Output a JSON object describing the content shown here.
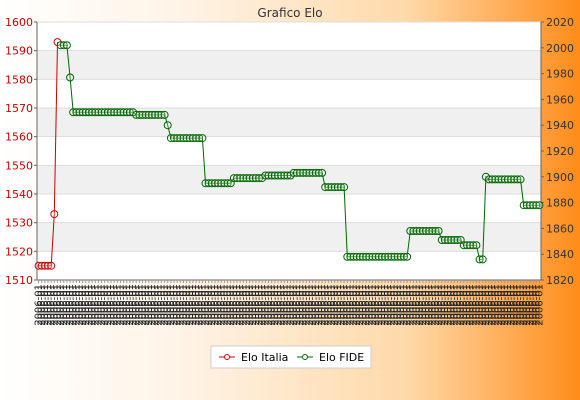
{
  "chart_data": {
    "type": "line",
    "title": "Grafico Elo",
    "y_left": {
      "ylim": [
        1510,
        1600
      ],
      "ticks": [
        1510,
        1520,
        1530,
        1540,
        1550,
        1560,
        1570,
        1580,
        1590,
        1600
      ],
      "color": "#cc0000"
    },
    "y_right": {
      "ylim": [
        1820,
        2020
      ],
      "ticks": [
        1820,
        1840,
        1860,
        1880,
        1900,
        1920,
        1940,
        1960,
        1980,
        2000,
        2020
      ],
      "color": "#333333"
    },
    "grid": true,
    "legend_position": "bottom-center",
    "point_count": 160,
    "series": [
      {
        "name": "Elo Italia",
        "axis": "left",
        "color": "#cc0000",
        "points": [
          [
            0,
            1515
          ],
          [
            1,
            1515
          ],
          [
            2,
            1515
          ],
          [
            3,
            1515
          ],
          [
            4,
            1515
          ],
          [
            5,
            1533
          ],
          [
            6,
            1593
          ]
        ]
      },
      {
        "name": "Elo FIDE",
        "axis": "right",
        "color": "#006600",
        "points": [
          [
            7,
            2002
          ],
          [
            8,
            2002
          ],
          [
            9,
            2002
          ],
          [
            10,
            1977
          ],
          [
            11,
            1950
          ],
          [
            12,
            1950
          ],
          [
            13,
            1950
          ],
          [
            14,
            1950
          ],
          [
            15,
            1950
          ],
          [
            16,
            1950
          ],
          [
            17,
            1950
          ],
          [
            18,
            1950
          ],
          [
            19,
            1950
          ],
          [
            20,
            1950
          ],
          [
            21,
            1950
          ],
          [
            22,
            1950
          ],
          [
            23,
            1950
          ],
          [
            24,
            1950
          ],
          [
            25,
            1950
          ],
          [
            26,
            1950
          ],
          [
            27,
            1950
          ],
          [
            28,
            1950
          ],
          [
            29,
            1950
          ],
          [
            30,
            1950
          ],
          [
            31,
            1948
          ],
          [
            32,
            1948
          ],
          [
            33,
            1948
          ],
          [
            34,
            1948
          ],
          [
            35,
            1948
          ],
          [
            36,
            1948
          ],
          [
            37,
            1948
          ],
          [
            38,
            1948
          ],
          [
            39,
            1948
          ],
          [
            40,
            1948
          ],
          [
            41,
            1940
          ],
          [
            42,
            1930
          ],
          [
            43,
            1930
          ],
          [
            44,
            1930
          ],
          [
            45,
            1930
          ],
          [
            46,
            1930
          ],
          [
            47,
            1930
          ],
          [
            48,
            1930
          ],
          [
            49,
            1930
          ],
          [
            50,
            1930
          ],
          [
            51,
            1930
          ],
          [
            52,
            1930
          ],
          [
            53,
            1895
          ],
          [
            54,
            1895
          ],
          [
            55,
            1895
          ],
          [
            56,
            1895
          ],
          [
            57,
            1895
          ],
          [
            58,
            1895
          ],
          [
            59,
            1895
          ],
          [
            60,
            1895
          ],
          [
            61,
            1895
          ],
          [
            62,
            1899
          ],
          [
            63,
            1899
          ],
          [
            64,
            1899
          ],
          [
            65,
            1899
          ],
          [
            66,
            1899
          ],
          [
            67,
            1899
          ],
          [
            68,
            1899
          ],
          [
            69,
            1899
          ],
          [
            70,
            1899
          ],
          [
            71,
            1899
          ],
          [
            72,
            1901
          ],
          [
            73,
            1901
          ],
          [
            74,
            1901
          ],
          [
            75,
            1901
          ],
          [
            76,
            1901
          ],
          [
            77,
            1901
          ],
          [
            78,
            1901
          ],
          [
            79,
            1901
          ],
          [
            80,
            1901
          ],
          [
            81,
            1903
          ],
          [
            82,
            1903
          ],
          [
            83,
            1903
          ],
          [
            84,
            1903
          ],
          [
            85,
            1903
          ],
          [
            86,
            1903
          ],
          [
            87,
            1903
          ],
          [
            88,
            1903
          ],
          [
            89,
            1903
          ],
          [
            90,
            1903
          ],
          [
            91,
            1892
          ],
          [
            92,
            1892
          ],
          [
            93,
            1892
          ],
          [
            94,
            1892
          ],
          [
            95,
            1892
          ],
          [
            96,
            1892
          ],
          [
            97,
            1892
          ],
          [
            98,
            1838
          ],
          [
            99,
            1838
          ],
          [
            100,
            1838
          ],
          [
            101,
            1838
          ],
          [
            102,
            1838
          ],
          [
            103,
            1838
          ],
          [
            104,
            1838
          ],
          [
            105,
            1838
          ],
          [
            106,
            1838
          ],
          [
            107,
            1838
          ],
          [
            108,
            1838
          ],
          [
            109,
            1838
          ],
          [
            110,
            1838
          ],
          [
            111,
            1838
          ],
          [
            112,
            1838
          ],
          [
            113,
            1838
          ],
          [
            114,
            1838
          ],
          [
            115,
            1838
          ],
          [
            116,
            1838
          ],
          [
            117,
            1838
          ],
          [
            118,
            1858
          ],
          [
            119,
            1858
          ],
          [
            120,
            1858
          ],
          [
            121,
            1858
          ],
          [
            122,
            1858
          ],
          [
            123,
            1858
          ],
          [
            124,
            1858
          ],
          [
            125,
            1858
          ],
          [
            126,
            1858
          ],
          [
            127,
            1858
          ],
          [
            128,
            1851
          ],
          [
            129,
            1851
          ],
          [
            130,
            1851
          ],
          [
            131,
            1851
          ],
          [
            132,
            1851
          ],
          [
            133,
            1851
          ],
          [
            134,
            1851
          ],
          [
            135,
            1847
          ],
          [
            136,
            1847
          ],
          [
            137,
            1847
          ],
          [
            138,
            1847
          ],
          [
            139,
            1847
          ],
          [
            140,
            1836
          ],
          [
            141,
            1836
          ],
          [
            142,
            1900
          ],
          [
            143,
            1898
          ],
          [
            144,
            1898
          ],
          [
            145,
            1898
          ],
          [
            146,
            1898
          ],
          [
            147,
            1898
          ],
          [
            148,
            1898
          ],
          [
            149,
            1898
          ],
          [
            150,
            1898
          ],
          [
            151,
            1898
          ],
          [
            152,
            1898
          ],
          [
            153,
            1898
          ],
          [
            154,
            1878
          ],
          [
            155,
            1878
          ],
          [
            156,
            1878
          ],
          [
            157,
            1878
          ],
          [
            158,
            1878
          ],
          [
            159,
            1878
          ]
        ]
      }
    ],
    "x_tick_label_texture": "2006-01"
  }
}
